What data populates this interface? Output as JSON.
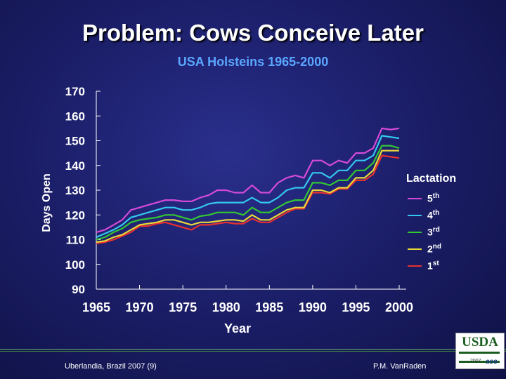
{
  "title": "Problem: Cows Conceive Later",
  "subtitle": "USA Holsteins 1965-2000",
  "footer": {
    "left": "Uberlandia, Brazil 2007 (9)",
    "right": "P.M. VanRaden"
  },
  "logo": {
    "text": "USDA",
    "year": "2007",
    "aes": "aes"
  },
  "legend": {
    "title": "Lactation"
  },
  "chart_data": {
    "type": "line",
    "xlabel": "Year",
    "ylabel": "Days Open",
    "xlim": [
      1965,
      2000
    ],
    "ylim": [
      90,
      170
    ],
    "x_ticks": [
      "1965",
      "1970",
      "1975",
      "1980",
      "1985",
      "1990",
      "1995",
      "2000"
    ],
    "y_ticks": [
      "170",
      "160",
      "150",
      "140",
      "130",
      "120",
      "110",
      "100",
      "90"
    ],
    "legend_position": "right",
    "x": [
      1965,
      1966,
      1967,
      1968,
      1969,
      1970,
      1971,
      1972,
      1973,
      1974,
      1975,
      1976,
      1977,
      1978,
      1979,
      1980,
      1981,
      1982,
      1983,
      1984,
      1985,
      1986,
      1987,
      1988,
      1989,
      1990,
      1991,
      1992,
      1993,
      1994,
      1995,
      1996,
      1997,
      1998,
      1999,
      2000
    ],
    "series": [
      {
        "name": "5th",
        "sup": "th",
        "base": "5",
        "color": "#d44ad8",
        "values": [
          113,
          114,
          116,
          118,
          122,
          123,
          124,
          125,
          126,
          126,
          125.5,
          125.5,
          127,
          128,
          130,
          130,
          129,
          129,
          132,
          129,
          129,
          133,
          135,
          136,
          135,
          142,
          142,
          140,
          142,
          141,
          145,
          145,
          147,
          155,
          154.5,
          155
        ]
      },
      {
        "name": "4th",
        "sup": "th",
        "base": "4",
        "color": "#34c8f0",
        "values": [
          111,
          112.5,
          114,
          116,
          119,
          120,
          121,
          122,
          123,
          123,
          122,
          122,
          123,
          124.5,
          125,
          125,
          125,
          125,
          127,
          125,
          125,
          127,
          130,
          131,
          131,
          137,
          137,
          135,
          138,
          138,
          142,
          142,
          144,
          152,
          151.5,
          151
        ]
      },
      {
        "name": "3rd",
        "sup": "rd",
        "base": "3",
        "color": "#32c832",
        "values": [
          110,
          111,
          113,
          114.5,
          117,
          118,
          118.5,
          119,
          120,
          120,
          119,
          118,
          119.5,
          120,
          121,
          121,
          121,
          120,
          123,
          121,
          121,
          123,
          125,
          126,
          126,
          133,
          133,
          132,
          134,
          134,
          138,
          138,
          141,
          148,
          148,
          147
        ]
      },
      {
        "name": "2nd",
        "sup": "nd",
        "base": "2",
        "color": "#e8d83a",
        "values": [
          109,
          109.5,
          111,
          112,
          114,
          116,
          116.5,
          117,
          118,
          118,
          117,
          116,
          117,
          117,
          117.5,
          118,
          118,
          117.5,
          120,
          118,
          118,
          120,
          122,
          123,
          123,
          130,
          130,
          129,
          131,
          131,
          135,
          135,
          138,
          146,
          146,
          146
        ]
      },
      {
        "name": "1st",
        "sup": "st",
        "base": "1",
        "color": "#e83030",
        "values": [
          108.5,
          109,
          110,
          111.5,
          113,
          115.5,
          115.5,
          116.5,
          117,
          116,
          115,
          114,
          116,
          116,
          116.5,
          117,
          116.5,
          116.5,
          118.5,
          117,
          117,
          119,
          121,
          122.5,
          122.5,
          129,
          129,
          128.5,
          130.5,
          130.5,
          134,
          134,
          136.5,
          144,
          143.5,
          143
        ]
      }
    ]
  }
}
